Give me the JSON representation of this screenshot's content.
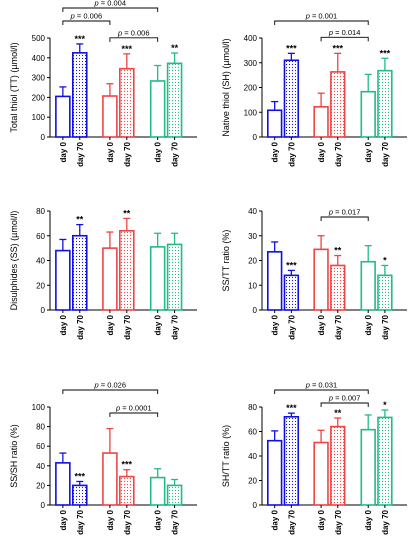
{
  "colors": {
    "blue": "#1010e0",
    "red": "#ee4444",
    "green": "#22bb88",
    "axis": "#000000"
  },
  "chart_data": [
    {
      "type": "bar",
      "ylabel": "Total thiol (TT) (µmol/l)",
      "ylim": [
        0,
        500
      ],
      "yticks": [
        0,
        100,
        200,
        300,
        400,
        500
      ],
      "categories": [
        "day 0",
        "day 70",
        "day 0",
        "day 70",
        "day 0",
        "day 70"
      ],
      "groups": [
        "blue",
        "blue",
        "red",
        "red",
        "green",
        "green"
      ],
      "values": [
        205,
        425,
        207,
        345,
        283,
        372
      ],
      "errors": [
        48,
        45,
        62,
        75,
        78,
        52
      ],
      "stars": [
        "",
        "***",
        "",
        "***",
        "",
        "**"
      ],
      "brackets": [
        {
          "from": 0,
          "to": 4,
          "label": "p = 0.004",
          "level": 2
        },
        {
          "from": 0,
          "to": 2,
          "label": "p = 0.006",
          "level": 1
        },
        {
          "from": 2,
          "to": 4,
          "label": "p = 0.006",
          "level": 0
        }
      ]
    },
    {
      "type": "bar",
      "ylabel": "Native thiol (SH) (µmol/l)",
      "ylim": [
        0,
        400
      ],
      "yticks": [
        0,
        100,
        200,
        300,
        400
      ],
      "categories": [
        "day 0",
        "day 70",
        "day 0",
        "day 70",
        "day 0",
        "day 70"
      ],
      "groups": [
        "blue",
        "blue",
        "red",
        "red",
        "green",
        "green"
      ],
      "values": [
        108,
        310,
        122,
        263,
        183,
        268
      ],
      "errors": [
        35,
        28,
        55,
        75,
        70,
        50
      ],
      "stars": [
        "",
        "***",
        "",
        "***",
        "",
        "***"
      ],
      "brackets": [
        {
          "from": 0,
          "to": 4,
          "label": "p = 0.001",
          "level": 1
        },
        {
          "from": 2,
          "to": 4,
          "label": "p = 0.014",
          "level": 0
        }
      ]
    },
    {
      "type": "bar",
      "ylabel": "Disulphides (SS) (µmol/l)",
      "ylim": [
        0,
        80
      ],
      "yticks": [
        0,
        20,
        40,
        60,
        80
      ],
      "categories": [
        "day 0",
        "day 70",
        "day 0",
        "day 70",
        "day 0",
        "day 70"
      ],
      "groups": [
        "blue",
        "blue",
        "red",
        "red",
        "green",
        "green"
      ],
      "values": [
        48,
        60,
        50,
        64,
        51,
        53
      ],
      "errors": [
        9,
        9,
        13,
        10,
        11,
        9
      ],
      "stars": [
        "",
        "**",
        "",
        "**",
        "",
        ""
      ],
      "brackets": []
    },
    {
      "type": "bar",
      "ylabel": "SS/TT ratio (%)",
      "ylim": [
        0,
        40
      ],
      "yticks": [
        0,
        10,
        20,
        30,
        40
      ],
      "categories": [
        "day 0",
        "day 70",
        "day 0",
        "day 70",
        "day 0",
        "day 70"
      ],
      "groups": [
        "blue",
        "blue",
        "red",
        "red",
        "green",
        "green"
      ],
      "values": [
        23.5,
        14,
        24.5,
        18,
        19.5,
        14
      ],
      "errors": [
        4,
        2,
        5.5,
        4,
        6.5,
        4
      ],
      "stars": [
        "",
        "***",
        "",
        "**",
        "",
        "*"
      ],
      "brackets": [
        {
          "from": 2,
          "to": 4,
          "label": "p = 0.017",
          "level": 0
        }
      ]
    },
    {
      "type": "bar",
      "ylabel": "SS/SH ratio (%)",
      "ylim": [
        0,
        100
      ],
      "yticks": [
        0,
        20,
        40,
        60,
        80,
        100
      ],
      "categories": [
        "day 0",
        "day 70",
        "day 0",
        "day 70",
        "day 0",
        "day 70"
      ],
      "groups": [
        "blue",
        "blue",
        "red",
        "red",
        "green",
        "green"
      ],
      "values": [
        43,
        20,
        53,
        29,
        28,
        20
      ],
      "errors": [
        10,
        4,
        25,
        7,
        9,
        6
      ],
      "stars": [
        "",
        "***",
        "",
        "***",
        "",
        ""
      ],
      "brackets": [
        {
          "from": 0,
          "to": 4,
          "label": "p = 0.026",
          "level": 1
        },
        {
          "from": 2,
          "to": 4,
          "label": "p = 0.0001",
          "level": 0
        }
      ]
    },
    {
      "type": "bar",
      "ylabel": "SH/TT ratio (%)",
      "ylim": [
        0,
        80
      ],
      "yticks": [
        0,
        20,
        40,
        60,
        80
      ],
      "categories": [
        "day 0",
        "day 70",
        "day 0",
        "day 70",
        "day 0",
        "day 70"
      ],
      "groups": [
        "blue",
        "blue",
        "red",
        "red",
        "green",
        "green"
      ],
      "values": [
        52.5,
        72,
        51,
        64,
        61.5,
        71.5
      ],
      "errors": [
        8,
        3,
        10,
        7,
        12,
        6
      ],
      "stars": [
        "",
        "***",
        "",
        "**",
        "",
        "*"
      ],
      "brackets": [
        {
          "from": 0,
          "to": 4,
          "label": "p = 0.031",
          "level": 1
        },
        {
          "from": 2,
          "to": 4,
          "label": "p = 0.007",
          "level": 0
        }
      ]
    }
  ]
}
